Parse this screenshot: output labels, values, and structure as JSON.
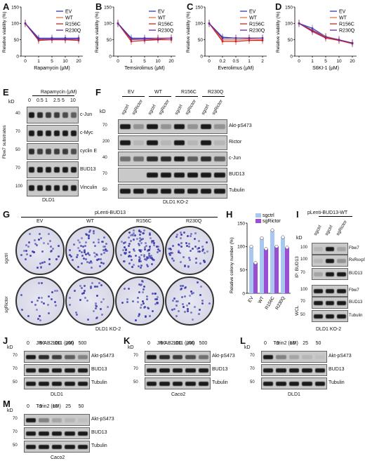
{
  "panels": {
    "A": "A",
    "B": "B",
    "C": "C",
    "D": "D",
    "E": "E",
    "F": "F",
    "G": "G",
    "H": "H",
    "I": "I",
    "J": "J",
    "K": "K",
    "L": "L",
    "M": "M"
  },
  "legend": [
    "EV",
    "WT",
    "R156C",
    "R230Q"
  ],
  "colors": {
    "EV": "#2a3bd6",
    "WT": "#e3733a",
    "R156C": "#d42020",
    "R230Q": "#6a2a9a",
    "sgctrl": "#a8c8f0",
    "sgRictor": "#9a4fd2"
  },
  "ylabel_viability": "Relative viability (%)",
  "chart_data": [
    {
      "type": "line",
      "panel": "A",
      "xlabel": "Rapamycin (μM)",
      "categories": [
        "0",
        "1",
        "5",
        "10",
        "20"
      ],
      "ylim": [
        0,
        150
      ],
      "yticks": [
        "0",
        "50",
        "100",
        "150"
      ],
      "series": [
        {
          "name": "EV",
          "values": [
            100,
            55,
            55,
            55,
            55
          ]
        },
        {
          "name": "WT",
          "values": [
            100,
            50,
            50,
            50,
            52
          ]
        },
        {
          "name": "R156C",
          "values": [
            100,
            48,
            50,
            50,
            48
          ]
        },
        {
          "name": "R230Q",
          "values": [
            100,
            52,
            52,
            52,
            52
          ]
        }
      ]
    },
    {
      "type": "line",
      "panel": "B",
      "xlabel": "Temsirolimus (μM)",
      "categories": [
        "0",
        "1",
        "5",
        "10",
        "20"
      ],
      "ylim": [
        0,
        150
      ],
      "yticks": [
        "0",
        "50",
        "100",
        "150"
      ],
      "series": [
        {
          "name": "EV",
          "values": [
            100,
            55,
            55,
            55,
            55
          ]
        },
        {
          "name": "WT",
          "values": [
            100,
            50,
            52,
            55,
            55
          ]
        },
        {
          "name": "R156C",
          "values": [
            100,
            45,
            48,
            50,
            50
          ]
        },
        {
          "name": "R230Q",
          "values": [
            100,
            52,
            52,
            52,
            55
          ]
        }
      ]
    },
    {
      "type": "line",
      "panel": "C",
      "xlabel": "Everolimus (μM)",
      "categories": [
        "0",
        "0.2",
        "0.5",
        "1",
        "2"
      ],
      "ylim": [
        0,
        150
      ],
      "yticks": [
        "0",
        "50",
        "100",
        "150"
      ],
      "series": [
        {
          "name": "EV",
          "values": [
            100,
            58,
            55,
            55,
            55
          ]
        },
        {
          "name": "WT",
          "values": [
            100,
            50,
            50,
            52,
            50
          ]
        },
        {
          "name": "R156C",
          "values": [
            100,
            45,
            45,
            48,
            48
          ]
        },
        {
          "name": "R230Q",
          "values": [
            100,
            55,
            55,
            55,
            55
          ]
        }
      ]
    },
    {
      "type": "line",
      "panel": "D",
      "xlabel": "S6KI-1 (μM)",
      "categories": [
        "0",
        "1",
        "5",
        "10",
        "20"
      ],
      "ylim": [
        0,
        150
      ],
      "yticks": [
        "0",
        "50",
        "100",
        "150"
      ],
      "series": [
        {
          "name": "EV",
          "values": [
            100,
            85,
            60,
            50,
            40
          ]
        },
        {
          "name": "WT",
          "values": [
            100,
            80,
            60,
            50,
            40
          ]
        },
        {
          "name": "R156C",
          "values": [
            100,
            75,
            55,
            48,
            38
          ]
        },
        {
          "name": "R230Q",
          "values": [
            100,
            78,
            58,
            50,
            40
          ]
        }
      ]
    },
    {
      "type": "bar",
      "panel": "H",
      "ylabel": "Relative colony number (%)",
      "categories": [
        "EV",
        "WT",
        "R156C",
        "R230Q"
      ],
      "ylim": [
        0,
        150
      ],
      "yticks": [
        "0",
        "50",
        "100",
        "150"
      ],
      "series": [
        {
          "name": "sgctrl",
          "values": [
            100,
            118,
            135,
            120
          ]
        },
        {
          "name": "sgRictor",
          "values": [
            65,
            95,
            100,
            98
          ]
        }
      ]
    }
  ],
  "E": {
    "title": "Rapamycin (μM)",
    "doses": [
      "0",
      "0.5",
      "1",
      "2.5",
      "5",
      "10"
    ],
    "side": "Fbw7 substrates",
    "kd": [
      "40",
      "70",
      "50",
      "70",
      "100"
    ],
    "rows": [
      "c-Jun",
      "c-Myc",
      "cyclin E",
      "BUD13",
      "Vinculin"
    ],
    "cell": "DLD1"
  },
  "F": {
    "groups": [
      "EV",
      "WT",
      "R156C",
      "R230Q"
    ],
    "lanes": [
      "sgctrl",
      "sgRictor"
    ],
    "kd": [
      "70",
      "200",
      "40",
      "70",
      "50"
    ],
    "rows": [
      "Akt-pS473",
      "Rictor",
      "c-Jun",
      "BUD13",
      "Tubulin"
    ],
    "cell": "DLD1 KO-2"
  },
  "G": {
    "title": "pLenti-BUD13",
    "cols": [
      "EV",
      "WT",
      "R156C",
      "R230Q"
    ],
    "rowsLabel": [
      "sgctrl",
      "sgRictor"
    ],
    "cell": "DLD1 KO-2"
  },
  "I": {
    "title": "pLenti-BUD13-WT",
    "lanes": [
      "sgctrl",
      "sgctrl",
      "sgRictor"
    ],
    "ip": "IP: BUD13",
    "wcl": "WCL",
    "kd": [
      "100",
      "100",
      "70",
      "100",
      "70",
      "50"
    ],
    "rows": [
      "Fbw7",
      "RxRxxpS/pT",
      "BUD13",
      "Fbw7",
      "BUD13",
      "Tubulin"
    ],
    "cell": "DLD1 KO-2"
  },
  "J": {
    "title": "JR-AB2-011 (μM)",
    "doses": [
      "0",
      "50",
      "100",
      "200",
      "500"
    ],
    "kd": [
      "70",
      "70",
      "50"
    ],
    "rows": [
      "Akt-pS473",
      "BUD13",
      "Tubulin"
    ],
    "cell": "DLD1"
  },
  "K": {
    "title": "JR-AB2-011 (μM)",
    "doses": [
      "0",
      "50",
      "100",
      "200",
      "500"
    ],
    "kd": [
      "70",
      "70",
      "50"
    ],
    "rows": [
      "Akt-pS473",
      "BUD13",
      "Tubulin"
    ],
    "cell": "Caco2"
  },
  "L": {
    "title": "Torin2 (nM)",
    "doses": [
      "0",
      "5",
      "10",
      "25",
      "50"
    ],
    "kd": [
      "70",
      "70",
      "50"
    ],
    "rows": [
      "Akt-pS473",
      "BUD13",
      "Tubulin"
    ],
    "cell": "DLD1"
  },
  "M": {
    "title": "Torin2 (nM)",
    "doses": [
      "0",
      "5",
      "10",
      "25",
      "50"
    ],
    "kd": [
      "70",
      "70",
      "50"
    ],
    "rows": [
      "Akt-pS473",
      "BUD13",
      "Tubulin"
    ],
    "cell": "Caco2"
  },
  "kdLabel": "kD"
}
